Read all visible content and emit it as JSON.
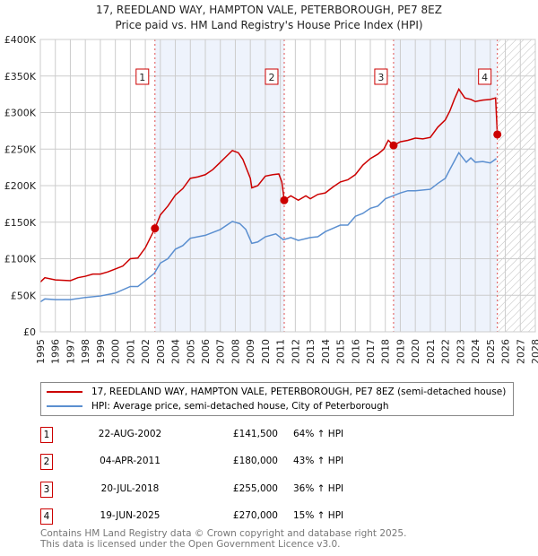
{
  "title": "17, REEDLAND WAY, HAMPTON VALE, PETERBOROUGH, PE7 8EZ",
  "subtitle": "Price paid vs. HM Land Registry's House Price Index (HPI)",
  "chart_data": {
    "type": "line",
    "xlim": [
      1995,
      2028
    ],
    "ylim": [
      0,
      400000
    ],
    "yticks": [
      0,
      50000,
      100000,
      150000,
      200000,
      250000,
      300000,
      350000,
      400000
    ],
    "ytick_labels": [
      "£0",
      "£50K",
      "£100K",
      "£150K",
      "£200K",
      "£250K",
      "£300K",
      "£350K",
      "£400K"
    ],
    "xticks": [
      1995,
      1996,
      1997,
      1998,
      1999,
      2000,
      2001,
      2002,
      2003,
      2004,
      2005,
      2006,
      2007,
      2008,
      2009,
      2010,
      2011,
      2012,
      2013,
      2014,
      2015,
      2016,
      2017,
      2018,
      2019,
      2020,
      2021,
      2022,
      2023,
      2024,
      2025,
      2026,
      2027,
      2028
    ],
    "forecast_from": 2025.5,
    "series": [
      {
        "name": "17, REEDLAND WAY, HAMPTON VALE, PETERBOROUGH, PE7 8EZ (semi-detached house)",
        "color": "#cc0000",
        "x": [
          1995,
          1995.3,
          1996,
          1997,
          1997.5,
          1998,
          1998.5,
          1999,
          1999.5,
          2000,
          2000.5,
          2001,
          2001.5,
          2002,
          2002.64,
          2003,
          2003.5,
          2004,
          2004.5,
          2005,
          2005.5,
          2006,
          2006.5,
          2007,
          2007.5,
          2007.8,
          2008.2,
          2008.5,
          2009,
          2009.1,
          2009.5,
          2010,
          2010.5,
          2010.9,
          2011.1,
          2011.26,
          2011.7,
          2012.2,
          2012.7,
          2013,
          2013.5,
          2014,
          2014.5,
          2015,
          2015.5,
          2016,
          2016.5,
          2017,
          2017.5,
          2017.9,
          2018.2,
          2018.55,
          2019,
          2019.5,
          2020,
          2020.5,
          2021,
          2021.5,
          2022,
          2022.3,
          2022.6,
          2022.9,
          2023.3,
          2023.7,
          2024,
          2024.5,
          2025,
          2025.35,
          2025.47
        ],
        "y": [
          68,
          74,
          71,
          70,
          74,
          76,
          79,
          79,
          82,
          86,
          90,
          100,
          101,
          115,
          141.5,
          160,
          172,
          187,
          196,
          210,
          212,
          215,
          222,
          232,
          242,
          248,
          245,
          236,
          210,
          197,
          200,
          213,
          215,
          216,
          205,
          180,
          186,
          180,
          186,
          182,
          188,
          190,
          198,
          205,
          208,
          215,
          228,
          237,
          243,
          250,
          262,
          255,
          260,
          262,
          265,
          264,
          266,
          280,
          290,
          302,
          318,
          332,
          320,
          318,
          315,
          317,
          318,
          320,
          270
        ]
      },
      {
        "name": "HPI: Average price, semi-detached house, City of Peterborough",
        "color": "#5b8fd0",
        "x": [
          1995,
          1995.3,
          1996,
          1997,
          1998,
          1999,
          2000,
          2001,
          2001.5,
          2002,
          2002.6,
          2003,
          2003.5,
          2004,
          2004.5,
          2005,
          2006,
          2007,
          2007.8,
          2008.3,
          2008.7,
          2009.1,
          2009.5,
          2010,
          2010.7,
          2011.2,
          2011.7,
          2012.2,
          2013,
          2013.5,
          2014,
          2015,
          2015.5,
          2016,
          2016.5,
          2017,
          2017.5,
          2018,
          2018.5,
          2019,
          2019.5,
          2020,
          2021,
          2021.5,
          2022,
          2022.3,
          2022.9,
          2023.4,
          2023.7,
          2024,
          2024.5,
          2025,
          2025.4
        ],
        "y": [
          41,
          45,
          44,
          44,
          47,
          49,
          53,
          62,
          62,
          70,
          80,
          94,
          100,
          113,
          118,
          128,
          132,
          140,
          151,
          148,
          140,
          121,
          123,
          130,
          134,
          126,
          129,
          125,
          129,
          130,
          137,
          146,
          146,
          158,
          162,
          169,
          172,
          182,
          186,
          190,
          193,
          193,
          195,
          203,
          210,
          222,
          245,
          232,
          238,
          232,
          233,
          231,
          237
        ]
      }
    ],
    "y_unit": "thousands GBP",
    "sales": [
      {
        "n": "1",
        "x": 2002.64,
        "y": 141.5
      },
      {
        "n": "2",
        "x": 2011.26,
        "y": 180
      },
      {
        "n": "3",
        "x": 2018.55,
        "y": 255
      },
      {
        "n": "4",
        "x": 2025.47,
        "y": 270
      }
    ]
  },
  "legend": {
    "red": "17, REEDLAND WAY, HAMPTON VALE, PETERBOROUGH, PE7 8EZ (semi-detached house)",
    "blue": "HPI: Average price, semi-detached house, City of Peterborough"
  },
  "table": [
    {
      "n": "1",
      "date": "22-AUG-2002",
      "price": "£141,500",
      "pct": "64% ↑ HPI"
    },
    {
      "n": "2",
      "date": "04-APR-2011",
      "price": "£180,000",
      "pct": "43% ↑ HPI"
    },
    {
      "n": "3",
      "date": "20-JUL-2018",
      "price": "£255,000",
      "pct": "36% ↑ HPI"
    },
    {
      "n": "4",
      "date": "19-JUN-2025",
      "price": "£270,000",
      "pct": "15% ↑ HPI"
    }
  ],
  "footer": {
    "line1": "Contains HM Land Registry data © Crown copyright and database right 2025.",
    "line2": "This data is licensed under the Open Government Licence v3.0."
  }
}
